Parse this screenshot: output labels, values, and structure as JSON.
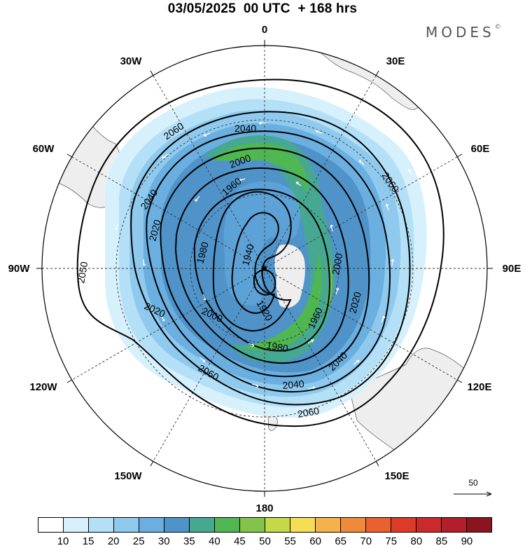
{
  "title": "03/05/2025  00 UTC  + 168 hrs",
  "brand": "MODES",
  "brand_mark": "©",
  "longitude_labels": {
    "top": "0",
    "lon30e": "30E",
    "lon60e": "60E",
    "lon90e": "90E",
    "lon120e": "120E",
    "lon150e": "150E",
    "bottom": "180",
    "lon150w": "150W",
    "lon120w": "120W",
    "lon90w": "90W",
    "lon60w": "60W",
    "lon30w": "30W"
  },
  "contour_labels": [
    "2060",
    "2040",
    "2000",
    "1960",
    "2040",
    "2020",
    "1980",
    "1940",
    "2050",
    "1920",
    "2000",
    "2020",
    "2060",
    "2060",
    "1980",
    "1960",
    "2040",
    "2020",
    "2000",
    "2040",
    "2060"
  ],
  "colorbar": {
    "colors": [
      "#ffffff",
      "#d6f0fc",
      "#b4e0f7",
      "#8fcaee",
      "#6aafe0",
      "#4f93c9",
      "#47a891",
      "#4fb652",
      "#84c34b",
      "#c3d94a",
      "#f5de55",
      "#f5b24c",
      "#ef8a3c",
      "#e8612f",
      "#de3a29",
      "#cc2a2a",
      "#b21f2a",
      "#8a1520"
    ],
    "labels": [
      "10",
      "15",
      "20",
      "25",
      "30",
      "35",
      "40",
      "45",
      "50",
      "55",
      "60",
      "65",
      "70",
      "75",
      "80",
      "85",
      "90"
    ]
  },
  "reference_vector": "50"
}
